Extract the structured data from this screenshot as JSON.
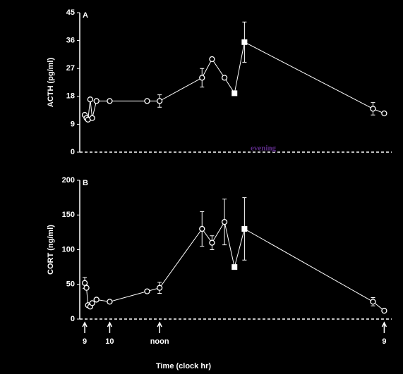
{
  "chart_data": [
    {
      "type": "line",
      "panel_label": "A",
      "ylabel": "ACTH (pg/ml)",
      "annotation": "evening",
      "xlim": [
        8.8,
        21.3
      ],
      "ylim": [
        0,
        45
      ],
      "yticks": [
        0,
        9,
        18,
        27,
        36,
        45
      ],
      "series": [
        {
          "color": "#ffffff",
          "x": [
            9.0,
            9.07,
            9.13,
            9.22,
            9.3,
            9.47,
            10,
            11.5,
            12.0,
            13.7,
            14.1,
            14.6,
            15.0,
            15.4,
            20.55,
            21.0
          ],
          "values": [
            12,
            11,
            10.5,
            17,
            11,
            16.5,
            16.5,
            16.5,
            16.5,
            24,
            30,
            24,
            19,
            35.5,
            14,
            12.5
          ],
          "errors": [
            null,
            null,
            null,
            null,
            null,
            null,
            null,
            null,
            2,
            3,
            null,
            null,
            null,
            6.5,
            2,
            null
          ],
          "filled": [
            false,
            false,
            false,
            false,
            false,
            false,
            false,
            false,
            false,
            false,
            false,
            false,
            true,
            true,
            false,
            false
          ]
        }
      ]
    },
    {
      "type": "line",
      "panel_label": "B",
      "ylabel": "CORT (ng/ml)",
      "xlabel": "Time (clock hr)",
      "xlim": [
        8.8,
        21.3
      ],
      "ylim": [
        0,
        200
      ],
      "yticks": [
        0,
        50,
        100,
        150,
        200
      ],
      "xticks": [
        9,
        10,
        {
          "value": 12,
          "label": "noon"
        },
        {
          "value": 21,
          "label": "9"
        }
      ],
      "series": [
        {
          "color": "#ffffff",
          "x": [
            9.0,
            9.07,
            9.13,
            9.22,
            9.3,
            9.47,
            10,
            11.5,
            12.0,
            13.7,
            14.1,
            14.6,
            15.0,
            15.4,
            20.55,
            21.0
          ],
          "values": [
            52,
            45,
            20,
            18,
            23,
            28,
            25,
            40,
            45,
            130,
            110,
            140,
            75,
            130,
            25,
            12
          ],
          "errors": [
            8,
            null,
            null,
            null,
            null,
            null,
            null,
            null,
            8,
            25,
            10,
            33,
            null,
            45,
            6,
            null
          ],
          "filled": [
            false,
            false,
            false,
            false,
            false,
            false,
            false,
            false,
            false,
            false,
            false,
            false,
            true,
            true,
            false,
            false
          ]
        }
      ]
    }
  ]
}
